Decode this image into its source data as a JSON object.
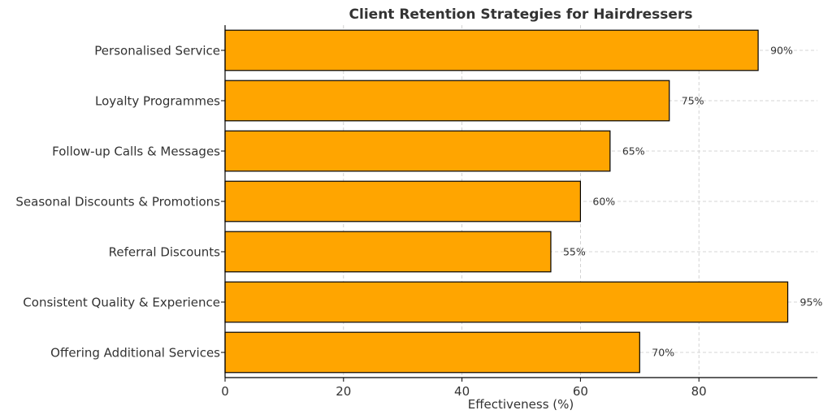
{
  "chart_data": {
    "type": "bar",
    "orientation": "horizontal",
    "title": "Client Retention Strategies for Hairdressers",
    "xlabel": "Effectiveness (%)",
    "ylabel": "",
    "categories": [
      "Personalised Service",
      "Loyalty Programmes",
      "Follow-up Calls & Messages",
      "Seasonal Discounts & Promotions",
      "Referral Discounts",
      "Consistent Quality & Experience",
      "Offering Additional Services"
    ],
    "values": [
      90,
      75,
      65,
      60,
      55,
      95,
      70
    ],
    "value_labels": [
      "90%",
      "75%",
      "65%",
      "60%",
      "55%",
      "95%",
      "70%"
    ],
    "xlim": [
      0,
      100
    ],
    "xticks": [
      0,
      20,
      40,
      60,
      80
    ],
    "xtick_labels": [
      "0",
      "20",
      "40",
      "60",
      "80"
    ],
    "grid": true,
    "bar_color": "#FFA500",
    "edge_color": "#000000",
    "text_color": "#333333"
  }
}
